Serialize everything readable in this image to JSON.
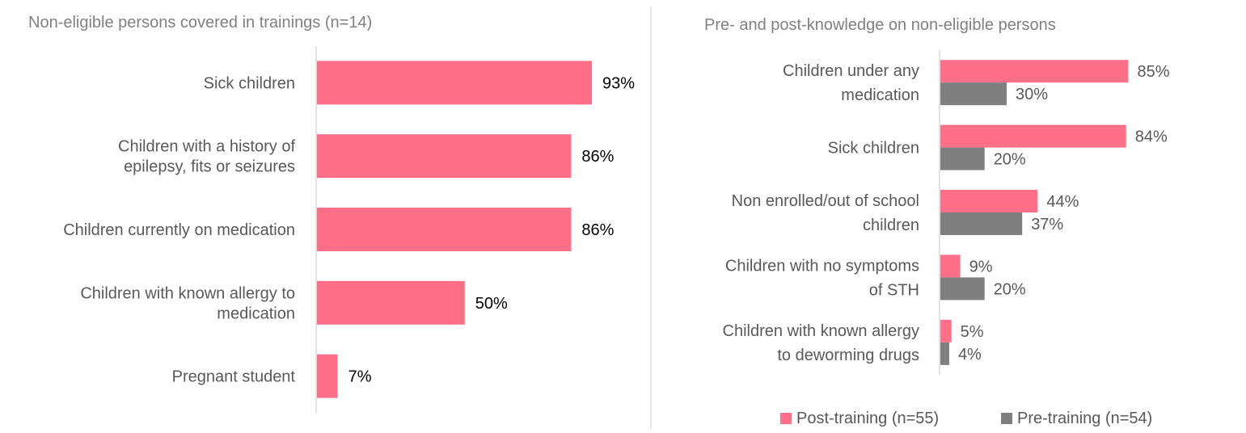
{
  "colors": {
    "post": "#FF6F87",
    "pre": "#7F7F7F",
    "axis": "#D9D9D9",
    "title_text": "#808080",
    "label_text": "#595959",
    "value_text": "#000000",
    "divider": "#E0E0E0"
  },
  "chart_data": [
    {
      "type": "bar",
      "orientation": "horizontal",
      "title": "Non-eligible persons covered in trainings (n=14)",
      "categories": [
        [
          "Sick children"
        ],
        [
          "Children with a history of",
          "epilepsy, fits or seizures"
        ],
        [
          "Children currently on medication"
        ],
        [
          "Children with known allergy to",
          "medication"
        ],
        [
          "Pregnant student"
        ]
      ],
      "series": [
        {
          "values": [
            93,
            86,
            86,
            50,
            7
          ],
          "labels": [
            "93%",
            "86%",
            "86%",
            "50%",
            "7%"
          ]
        }
      ],
      "xlim": [
        0,
        100
      ],
      "unit": "%",
      "grid": false
    },
    {
      "type": "bar",
      "orientation": "horizontal",
      "title": "Pre- and post-knowledge on non-eligible persons",
      "categories": [
        [
          "Children under any",
          "medication"
        ],
        [
          "Sick children"
        ],
        [
          "Non enrolled/out of school",
          "children"
        ],
        [
          "Children with no symptoms",
          "of STH"
        ],
        [
          "Children with known allergy",
          "to deworming drugs"
        ]
      ],
      "series": [
        {
          "name": "Post-training (n=55)",
          "values": [
            85,
            84,
            44,
            9,
            5
          ],
          "labels": [
            "85%",
            "84%",
            "44%",
            "9%",
            "5%"
          ]
        },
        {
          "name": "Pre-training (n=54)",
          "values": [
            30,
            20,
            37,
            20,
            4
          ],
          "labels": [
            "30%",
            "20%",
            "37%",
            "20%",
            "4%"
          ]
        }
      ],
      "xlim": [
        0,
        100
      ],
      "unit": "%",
      "legend": "bottom",
      "grid": false
    }
  ]
}
